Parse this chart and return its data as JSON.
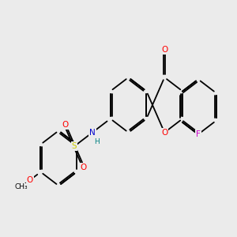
{
  "background_color": "#ebebeb",
  "bond_color": "#000000",
  "atom_colors": {
    "O": "#ff0000",
    "N": "#0000cc",
    "S": "#cccc00",
    "F": "#cc00cc",
    "H": "#008080",
    "C": "#000000"
  },
  "bond_lw": 1.3,
  "font_size": 7.0
}
